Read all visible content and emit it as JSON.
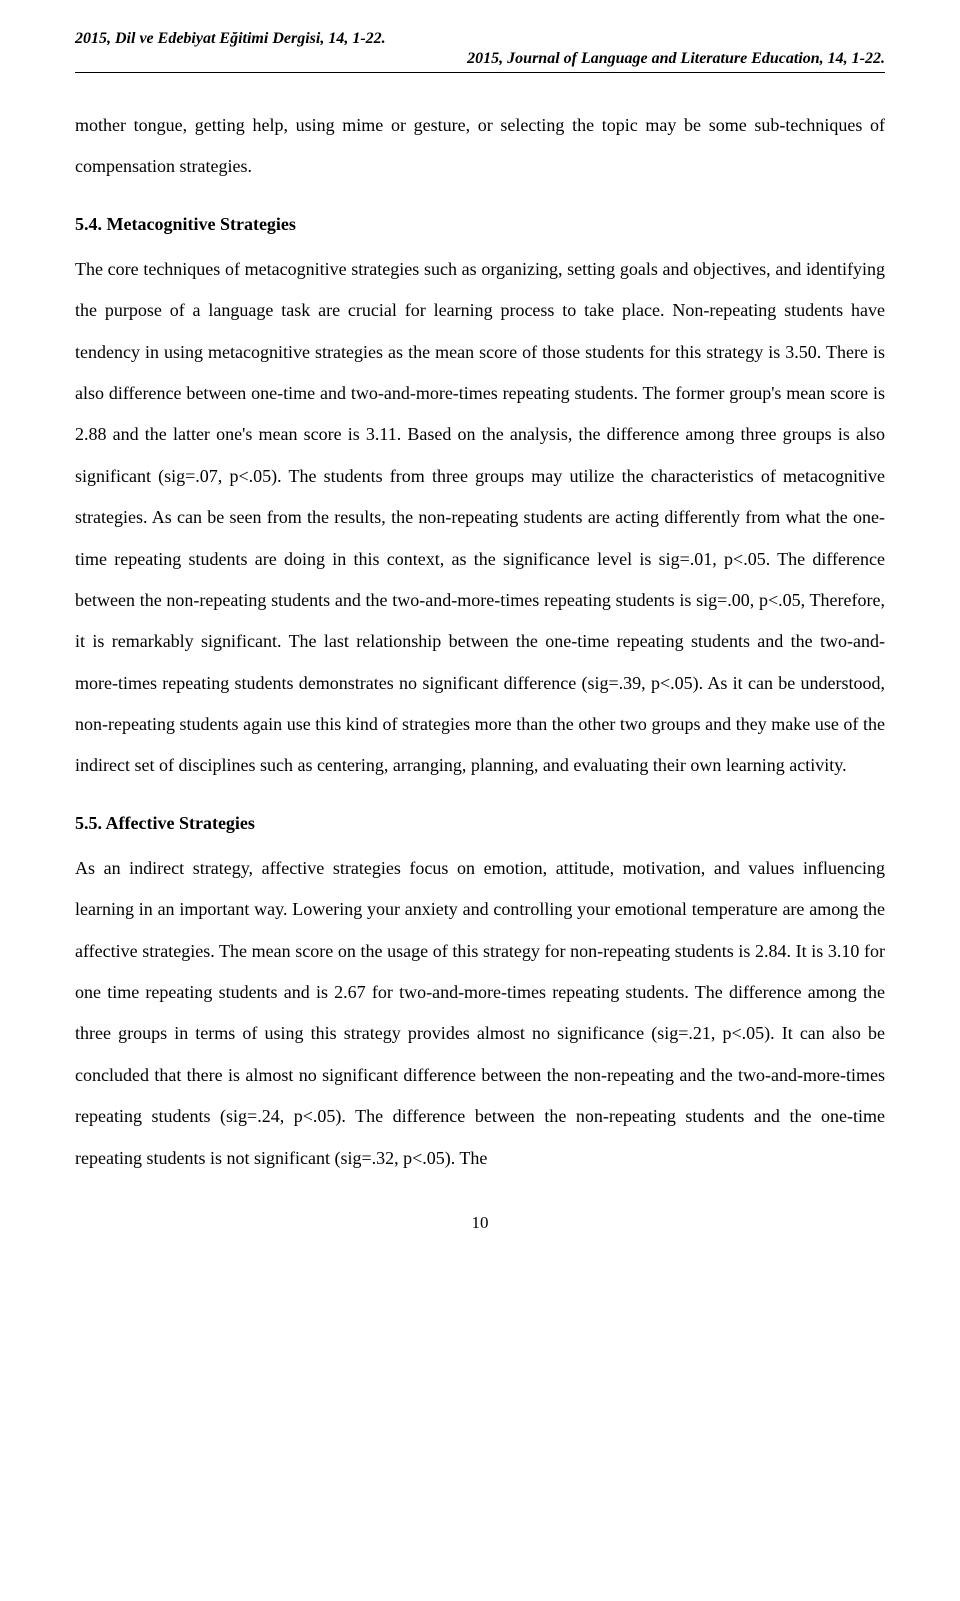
{
  "header": {
    "left": "2015, Dil ve Edebiyat Eğitimi Dergisi, 14, 1-22.",
    "right": "2015, Journal of Language and Literature Education, 14, 1-22."
  },
  "paragraphs": {
    "intro": "mother tongue, getting help, using mime or gesture, or selecting the topic may be some sub-techniques of compensation strategies.",
    "sec54_title": "5.4. Metacognitive Strategies",
    "sec54_body": "The core techniques of metacognitive strategies such as organizing, setting goals and objectives, and identifying the purpose of a language task are crucial for learning process to take place. Non-repeating students have tendency in using metacognitive strategies as the mean score of those students for this strategy is 3.50. There is also difference between one-time and two-and-more-times repeating students. The former group's mean score is 2.88 and the latter one's mean score is 3.11. Based on the analysis, the difference among three groups is also significant (sig=.07, p<.05). The students from three groups may utilize the characteristics of metacognitive strategies. As can be seen from the results, the non-repeating students are acting differently from what the one-time repeating students are doing in this context, as the significance level is sig=.01, p<.05. The difference between the non-repeating students and the two-and-more-times repeating students is sig=.00, p<.05, Therefore, it is remarkably significant. The last relationship between the one-time repeating students and the two-and-more-times repeating students demonstrates no significant difference (sig=.39, p<.05).  As it can be understood, non-repeating students again use this kind of strategies more than the other two groups and they make use of the indirect set of disciplines such as centering, arranging, planning, and evaluating their own learning activity.",
    "sec55_title": "5.5. Affective Strategies",
    "sec55_body": "As an indirect strategy, affective strategies focus on emotion, attitude, motivation, and values influencing learning in an important way. Lowering your anxiety and controlling your emotional temperature are among the affective strategies. The mean score on the usage of this strategy for non-repeating students is 2.84. It is 3.10 for one time repeating students and is 2.67 for two-and-more-times repeating students. The difference among the three groups in terms of using this strategy provides almost no significance (sig=.21, p<.05). It can also be concluded that there is almost no significant difference between the non-repeating and the two-and-more-times repeating students (sig=.24, p<.05). The difference between the non-repeating students and the one-time repeating students is not significant (sig=.32, p<.05). The"
  },
  "page_number": "10"
}
